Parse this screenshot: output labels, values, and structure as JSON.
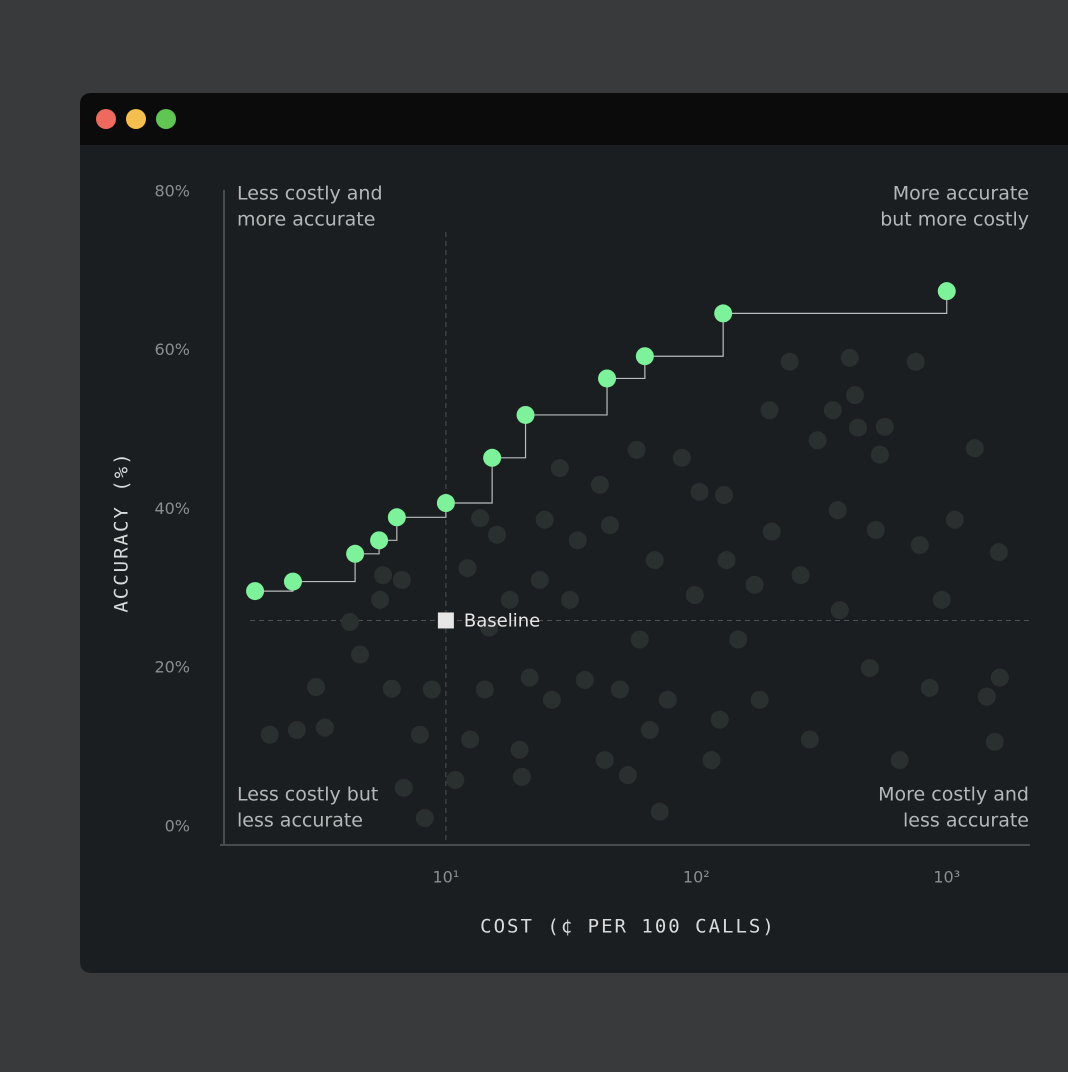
{
  "chart_data": {
    "type": "scatter",
    "x_label": "COST (¢ PER 100 CALLS)",
    "y_label": "ACCURACY (%)",
    "x_scale": "log",
    "xlim": [
      1.3,
      2150
    ],
    "ylim": [
      -2.3,
      80
    ],
    "xticks": [
      {
        "value": 10,
        "label": "10¹"
      },
      {
        "value": 100,
        "label": "10²"
      },
      {
        "value": 1000,
        "label": "10³"
      }
    ],
    "yticks": [
      {
        "value": 0,
        "label": "0%"
      },
      {
        "value": 20,
        "label": "20%"
      },
      {
        "value": 40,
        "label": "40%"
      },
      {
        "value": 60,
        "label": "60%"
      },
      {
        "value": 80,
        "label": "80%"
      }
    ],
    "annotations": [
      {
        "lines": [
          "Less costly and",
          "more accurate"
        ],
        "position": "top-left"
      },
      {
        "lines": [
          "More accurate",
          "but more costly"
        ],
        "position": "top-right"
      },
      {
        "lines": [
          "Less costly but",
          "less accurate"
        ],
        "position": "bottom-left"
      },
      {
        "lines": [
          "More costly and",
          "less accurate"
        ],
        "position": "bottom-right"
      }
    ],
    "baseline": {
      "label": "Baseline",
      "x": 10,
      "y": 26,
      "color": "#e6e6e6"
    },
    "series": [
      {
        "color": "#2a302f",
        "step": false,
        "x": [
          1.98,
          2.54,
          3.03,
          3.29,
          4.14,
          4.54,
          5.46,
          5.61,
          6.08,
          6.67,
          6.79,
          7.87,
          8.24,
          8.79,
          10.9,
          12.2,
          13.7,
          14.3,
          14.9,
          16.0,
          19.7,
          20.1,
          21.6,
          24.8,
          26.5,
          28.5,
          31.3,
          33.6,
          35.9,
          41.2,
          43.1,
          45.2,
          53.3,
          57.8,
          59.4,
          68.2,
          71.4,
          76.9,
          87.5,
          98.6,
          103,
          115,
          129,
          132,
          147,
          171,
          196,
          200,
          236,
          261,
          284,
          305,
          351,
          367,
          410,
          442,
          493,
          521,
          541,
          566,
          649,
          752,
          780,
          855,
          955,
          1077,
          1294,
          1445,
          1556,
          1614,
          1629,
          430,
          374,
          179,
          124,
          65.2,
          49.5,
          23.7,
          18.0,
          12.5
        ],
        "y": [
          11.6,
          12.2,
          17.6,
          12.5,
          25.8,
          21.7,
          28.6,
          31.7,
          17.4,
          31.1,
          4.9,
          11.6,
          1.1,
          17.3,
          5.9,
          32.6,
          38.9,
          17.3,
          25.1,
          36.8,
          9.7,
          6.3,
          18.8,
          38.7,
          16.0,
          45.2,
          28.6,
          36.1,
          18.5,
          43.1,
          8.4,
          38.0,
          6.5,
          47.5,
          23.6,
          33.6,
          1.9,
          16.0,
          46.5,
          29.2,
          42.2,
          8.4,
          41.8,
          33.6,
          23.6,
          30.5,
          52.5,
          37.2,
          58.6,
          31.7,
          11.0,
          48.7,
          52.5,
          39.9,
          59.1,
          50.3,
          20.0,
          37.4,
          46.9,
          50.4,
          8.4,
          58.6,
          35.5,
          17.5,
          28.6,
          38.7,
          47.7,
          16.4,
          10.7,
          34.6,
          18.8,
          54.4,
          27.3,
          16.0,
          13.5,
          12.2,
          17.3,
          31.1,
          28.6,
          11.0
        ]
      },
      {
        "color": "#7ef29a",
        "step": true,
        "x": [
          1.73,
          2.45,
          4.34,
          5.41,
          6.37,
          10,
          15.3,
          20.8,
          44.0,
          62.3,
          128,
          1000
        ],
        "y": [
          29.7,
          30.9,
          34.4,
          36.1,
          39.0,
          40.8,
          46.5,
          51.9,
          56.5,
          59.3,
          64.7,
          67.5
        ]
      }
    ]
  }
}
